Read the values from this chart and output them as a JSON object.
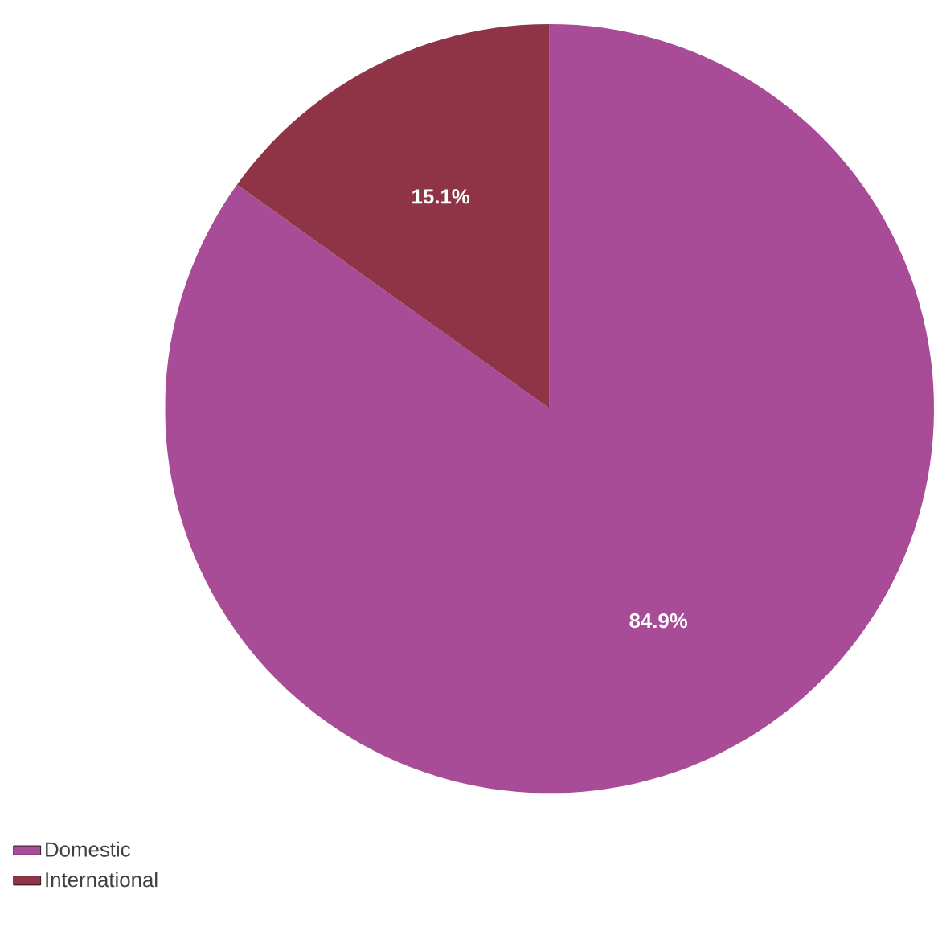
{
  "chart_data": {
    "type": "pie",
    "categories": [
      "Domestic",
      "International"
    ],
    "values": [
      84.9,
      15.1
    ],
    "colors": [
      "#a84c98",
      "#8e3446"
    ],
    "value_labels": [
      "84.9%",
      "15.1%"
    ],
    "legend": "bottom left"
  }
}
